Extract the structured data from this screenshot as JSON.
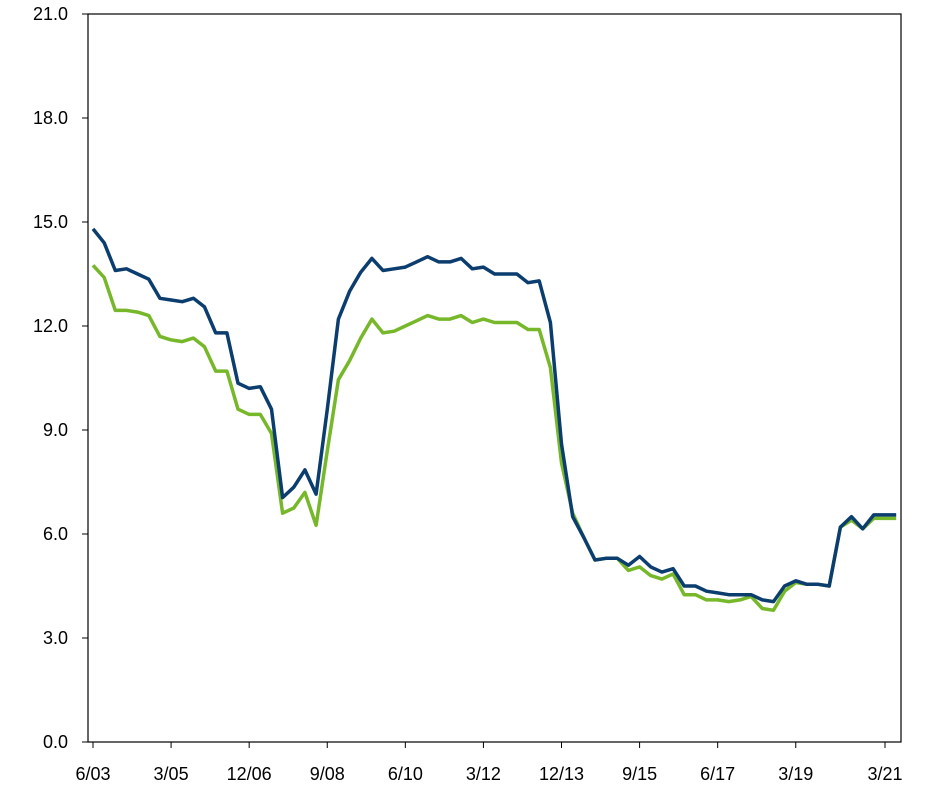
{
  "chart_data": {
    "type": "line",
    "title": "",
    "xlabel": "",
    "ylabel": "",
    "ylim": [
      0,
      21
    ],
    "y_ticks": [
      "0.0",
      "3.0",
      "6.0",
      "9.0",
      "12.0",
      "15.0",
      "18.0",
      "21.0"
    ],
    "x_ticks": [
      "6/03",
      "3/05",
      "12/06",
      "9/08",
      "6/10",
      "3/12",
      "12/13",
      "9/15",
      "6/17",
      "3/19",
      "3/21"
    ],
    "grid": false,
    "legend": "none",
    "x_quarters": [
      "6/03",
      "9/03",
      "12/03",
      "3/04",
      "6/04",
      "9/04",
      "12/04",
      "3/05",
      "6/05",
      "9/05",
      "12/05",
      "3/06",
      "6/06",
      "9/06",
      "12/06",
      "3/07",
      "6/07",
      "9/07",
      "12/07",
      "3/08",
      "6/08",
      "9/08",
      "12/08",
      "3/09",
      "6/09",
      "9/09",
      "12/09",
      "3/10",
      "6/10",
      "9/10",
      "12/10",
      "3/11",
      "6/11",
      "9/11",
      "12/11",
      "3/12",
      "6/12",
      "9/12",
      "12/12",
      "3/13",
      "6/13",
      "9/13",
      "12/13",
      "3/14",
      "6/14",
      "9/14",
      "12/14",
      "3/15",
      "6/15",
      "9/15",
      "12/15",
      "3/16",
      "6/16",
      "9/16",
      "12/16",
      "3/17",
      "6/17",
      "9/17",
      "12/17",
      "3/18",
      "6/18",
      "9/18",
      "12/18",
      "3/19",
      "6/19",
      "9/19",
      "12/19",
      "3/20",
      "6/20",
      "9/20",
      "12/20",
      "3/21",
      "6/21"
    ],
    "series": [
      {
        "color": "#0b3d6e",
        "values": [
          14.8,
          14.4,
          13.6,
          13.65,
          13.5,
          13.35,
          12.8,
          12.75,
          12.7,
          12.8,
          12.55,
          11.8,
          11.8,
          10.35,
          10.2,
          10.25,
          9.6,
          7.05,
          7.35,
          7.85,
          7.15,
          9.6,
          12.2,
          13.0,
          13.55,
          13.95,
          13.6,
          13.65,
          13.7,
          13.85,
          14.0,
          13.85,
          13.85,
          13.95,
          13.65,
          13.7,
          13.5,
          13.5,
          13.5,
          13.25,
          13.3,
          12.1,
          8.6,
          6.5,
          5.9,
          5.25,
          5.3,
          5.3,
          5.1,
          5.35,
          5.05,
          4.9,
          5.0,
          4.5,
          4.5,
          4.35,
          4.3,
          4.25,
          4.25,
          4.25,
          4.1,
          4.05,
          4.5,
          4.65,
          4.55,
          4.55,
          4.5,
          6.2,
          6.5,
          6.15,
          6.55,
          6.55,
          6.55
        ]
      },
      {
        "color": "#76b82a",
        "values": [
          13.75,
          13.4,
          12.45,
          12.45,
          12.4,
          12.3,
          11.7,
          11.6,
          11.55,
          11.65,
          11.4,
          10.7,
          10.7,
          9.6,
          9.45,
          9.45,
          8.9,
          6.6,
          6.75,
          7.2,
          6.25,
          8.4,
          10.45,
          11.0,
          11.65,
          12.2,
          11.8,
          11.85,
          12.0,
          12.15,
          12.3,
          12.2,
          12.2,
          12.3,
          12.1,
          12.2,
          12.1,
          12.1,
          12.1,
          11.9,
          11.9,
          10.8,
          8.05,
          6.6,
          5.9,
          5.25,
          5.3,
          5.3,
          4.95,
          5.05,
          4.8,
          4.7,
          4.85,
          4.25,
          4.25,
          4.1,
          4.1,
          4.05,
          4.1,
          4.2,
          3.85,
          3.8,
          4.35,
          4.6,
          4.55,
          4.55,
          4.5,
          6.2,
          6.4,
          6.15,
          6.45,
          6.45,
          6.45
        ]
      }
    ]
  }
}
